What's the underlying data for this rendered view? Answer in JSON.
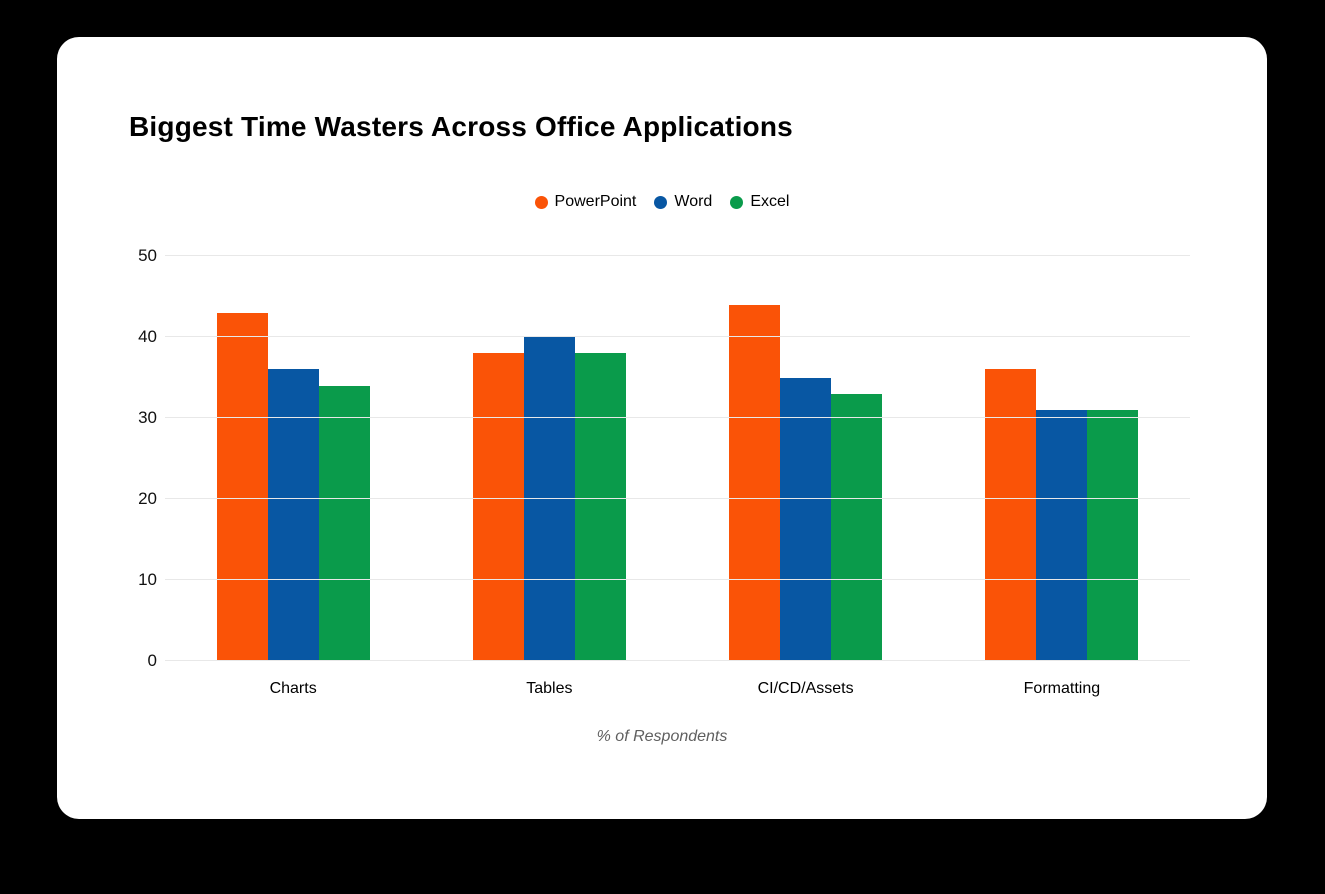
{
  "card": {
    "title": "Biggest Time Wasters Across Office Applications"
  },
  "chart_data": {
    "type": "bar",
    "title": "Biggest Time Wasters Across Office Applications",
    "categories": [
      "Charts",
      "Tables",
      "CI/CD/Assets",
      "Formatting"
    ],
    "series": [
      {
        "name": "PowerPoint",
        "color": "#FA5307",
        "values": [
          43,
          38,
          44,
          36
        ]
      },
      {
        "name": "Word",
        "color": "#0857A3",
        "values": [
          36,
          40,
          35,
          31
        ]
      },
      {
        "name": "Excel",
        "color": "#0A9B4B",
        "values": [
          34,
          38,
          33,
          31
        ]
      }
    ],
    "xlabel": "% of Respondents",
    "ylabel": "",
    "ylim": [
      0,
      50
    ],
    "yticks": [
      0,
      10,
      20,
      30,
      40,
      50
    ],
    "grid": true,
    "legend_position": "top-center",
    "colors": {
      "background": "#000000",
      "card": "#ffffff",
      "gridline": "#e8e8e8",
      "axis_label_text": "#5f5f5f",
      "tick_text": "#111111"
    }
  }
}
